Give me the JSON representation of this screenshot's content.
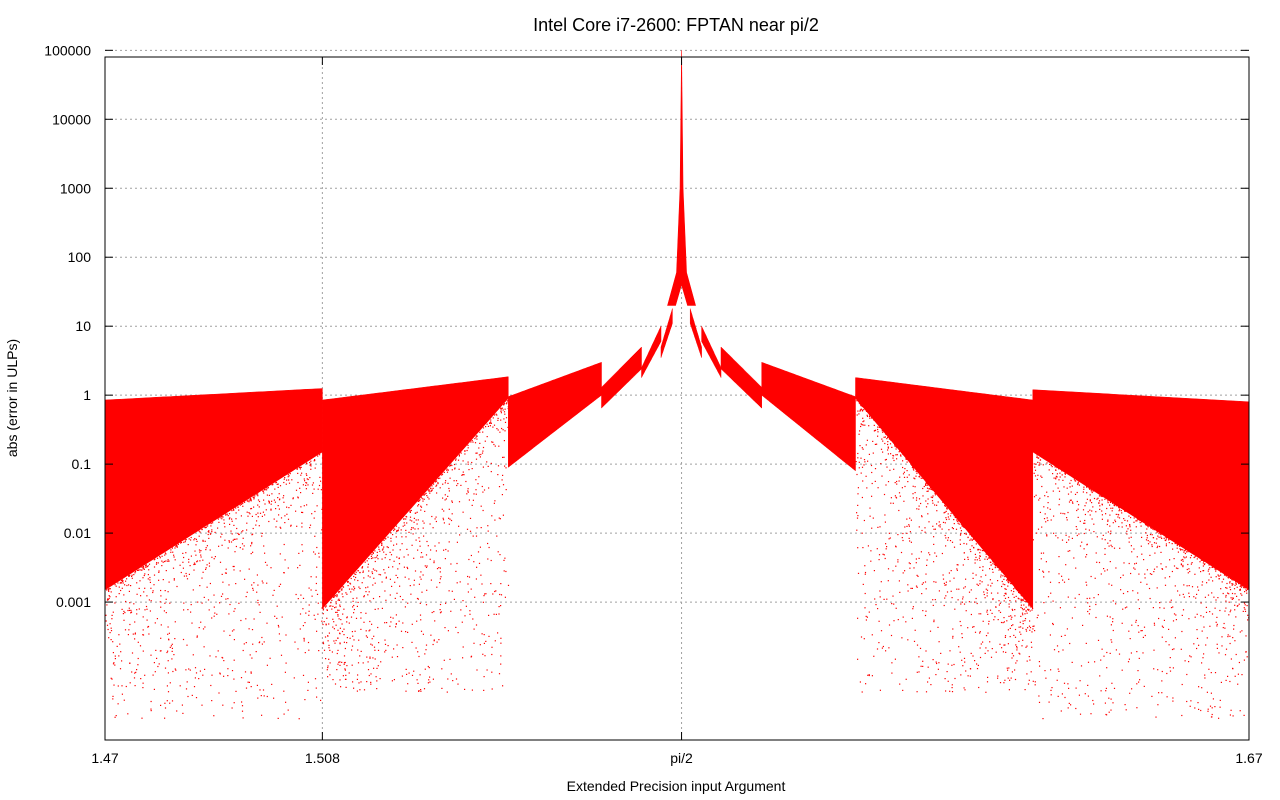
{
  "chart_data": {
    "type": "scatter",
    "title": "Intel Core i7-2600: FPTAN near pi/2",
    "xlabel": "Extended Precision input Argument",
    "ylabel": "abs (error in ULPs)",
    "xlim": [
      1.47,
      1.67
    ],
    "ylim": [
      1e-05,
      80000
    ],
    "y_scale": "log",
    "grid": true,
    "x_ticks": [
      {
        "value": 1.47,
        "label": "1.47"
      },
      {
        "value": 1.508,
        "label": "1.508"
      },
      {
        "value": 1.5707963,
        "label": "pi/2"
      },
      {
        "value": 1.67,
        "label": "1.67"
      }
    ],
    "y_ticks": [
      {
        "value": 0.001,
        "label": "0.001"
      },
      {
        "value": 0.01,
        "label": "0.01"
      },
      {
        "value": 0.1,
        "label": "0.1"
      },
      {
        "value": 1,
        "label": "1"
      },
      {
        "value": 10,
        "label": "10"
      },
      {
        "value": 100,
        "label": "100"
      },
      {
        "value": 1000,
        "label": "1000"
      },
      {
        "value": 10000,
        "label": "10000"
      },
      {
        "value": 100000,
        "label": "100000"
      }
    ],
    "series_color": "#ff0000",
    "segments": [
      {
        "x0": 1.47,
        "x1": 1.508,
        "top0": 0.85,
        "top1": 1.25,
        "floor0": 0.0015,
        "floor1": 0.15,
        "sparse_floor": 2e-05
      },
      {
        "x0": 1.508,
        "x1": 1.5405,
        "top0": 0.85,
        "top1": 1.85,
        "floor0": 0.0008,
        "floor1": 0.9,
        "sparse_floor": 5e-05
      },
      {
        "x0": 1.5405,
        "x1": 1.5568,
        "top0": 0.95,
        "top1": 3.0,
        "floor0": 0.09,
        "floor1": 1.0
      },
      {
        "x0": 1.5568,
        "x1": 1.5638,
        "top0": 1.3,
        "top1": 5.0,
        "floor0": 0.65,
        "floor1": 2.4
      },
      {
        "x0": 1.5638,
        "x1": 1.5672,
        "top0": 2.5,
        "top1": 10.0,
        "floor0": 1.8,
        "floor1": 6.0
      },
      {
        "x0": 1.5672,
        "x1": 1.5692,
        "top0": 5.0,
        "top1": 18.0,
        "floor0": 3.5,
        "floor1": 11.0
      },
      {
        "x0": 1.5723,
        "x1": 1.5743,
        "top0": 18.0,
        "top1": 5.0,
        "floor0": 11.0,
        "floor1": 3.5
      },
      {
        "x0": 1.5743,
        "x1": 1.5777,
        "top0": 10.0,
        "top1": 2.5,
        "floor0": 6.0,
        "floor1": 1.8
      },
      {
        "x0": 1.5777,
        "x1": 1.5848,
        "top0": 5.0,
        "top1": 1.3,
        "floor0": 2.4,
        "floor1": 0.65
      },
      {
        "x0": 1.5848,
        "x1": 1.6012,
        "top0": 3.0,
        "top1": 0.95,
        "floor0": 1.0,
        "floor1": 0.08
      },
      {
        "x0": 1.6012,
        "x1": 1.6322,
        "top0": 1.8,
        "top1": 0.85,
        "floor0": 0.9,
        "floor1": 0.0008,
        "sparse_floor": 5e-05
      },
      {
        "x0": 1.6322,
        "x1": 1.67,
        "top0": 1.2,
        "top1": 0.8,
        "floor0": 0.15,
        "floor1": 0.0015,
        "sparse_floor": 2e-05
      }
    ],
    "spike": {
      "x": 1.5707963,
      "peak": 100000
    }
  }
}
